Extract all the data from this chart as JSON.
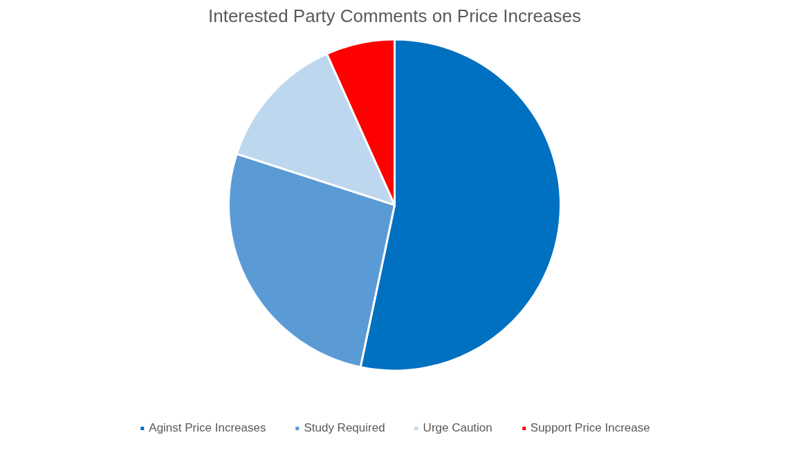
{
  "chart_data": {
    "type": "pie",
    "title": "Interested Party Comments on Price Increases",
    "categories": [
      "Aginst Price Increases",
      "Study Required",
      "Urge Caution",
      "Support Price Increase"
    ],
    "values": [
      53.3,
      26.7,
      13.3,
      6.7
    ],
    "colors": [
      "#0070c0",
      "#5b9bd5",
      "#bdd7ee",
      "#ff0000"
    ],
    "legend": "bottom"
  }
}
